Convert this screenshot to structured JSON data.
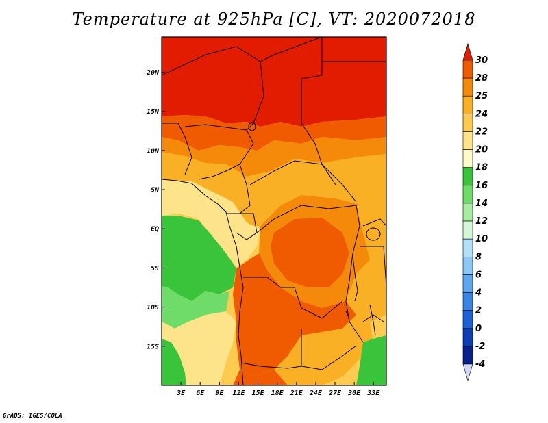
{
  "title": "Temperature at 925hPa [C], VT: 2020072018",
  "credit": "GrADS: IGES/COLA",
  "map": {
    "lat_ticks": [
      {
        "label": "20N",
        "lat": 20
      },
      {
        "label": "15N",
        "lat": 15
      },
      {
        "label": "10N",
        "lat": 10
      },
      {
        "label": "5N",
        "lat": 5
      },
      {
        "label": "EQ",
        "lat": 0
      },
      {
        "label": "5S",
        "lat": -5
      },
      {
        "label": "10S",
        "lat": -10
      },
      {
        "label": "15S",
        "lat": -15
      }
    ],
    "lon_ticks": [
      {
        "label": "3E",
        "lon": 3
      },
      {
        "label": "6E",
        "lon": 6
      },
      {
        "label": "9E",
        "lon": 9
      },
      {
        "label": "12E",
        "lon": 12
      },
      {
        "label": "15E",
        "lon": 15
      },
      {
        "label": "18E",
        "lon": 18
      },
      {
        "label": "21E",
        "lon": 21
      },
      {
        "label": "24E",
        "lon": 24
      },
      {
        "label": "27E",
        "lon": 27
      },
      {
        "label": "30E",
        "lon": 30
      },
      {
        "label": "33E",
        "lon": 33
      }
    ],
    "lon_range": [
      0,
      35
    ],
    "lat_range": [
      -20,
      24.5
    ]
  },
  "colorbar": {
    "labels": [
      "30",
      "28",
      "25",
      "24",
      "22",
      "20",
      "18",
      "16",
      "14",
      "12",
      "10",
      "8",
      "6",
      "4",
      "2",
      "0",
      "-2",
      "-4"
    ],
    "colors": [
      "#e11c00",
      "#f05a00",
      "#f58a0a",
      "#fab025",
      "#fccb50",
      "#fde38a",
      "#fefbc8",
      "#39c43c",
      "#6fdc6a",
      "#a6eda0",
      "#d6f7d6",
      "#b2e0fa",
      "#8cc8f5",
      "#5ea6ee",
      "#3a84e6",
      "#1e60d6",
      "#0c3fb4",
      "#0a1e8c",
      "#0a0a58"
    ],
    "top_triangle_color": "#e11c00",
    "bottom_triangle_color": "#d6d6f7"
  }
}
